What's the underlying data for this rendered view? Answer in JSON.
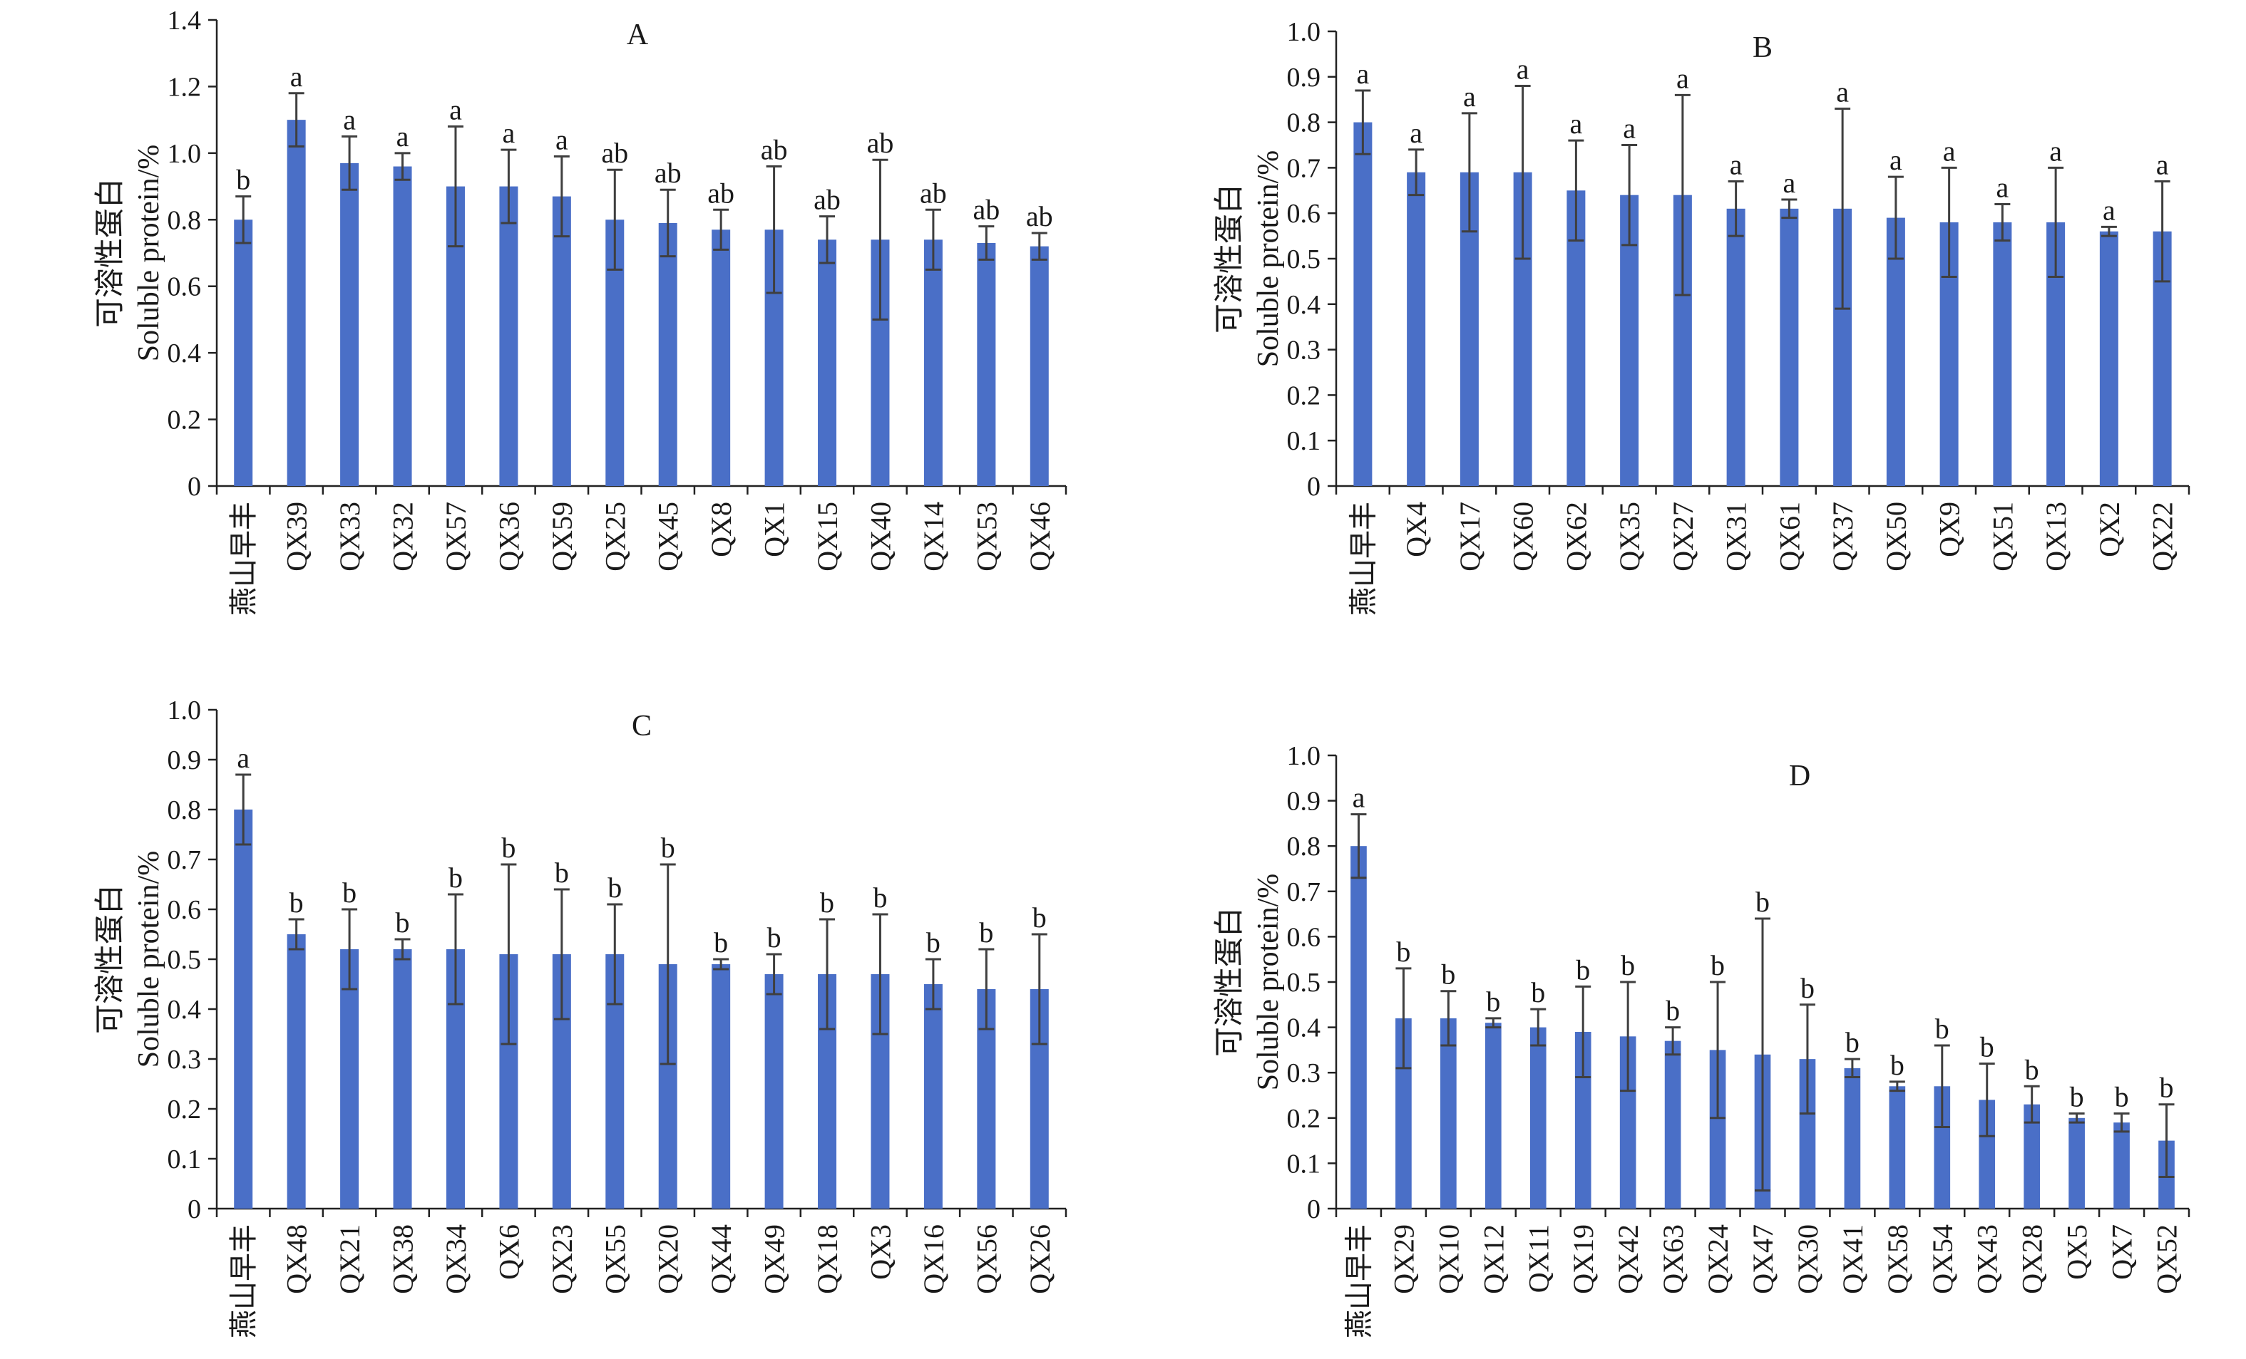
{
  "colors": {
    "bar": "#4a6fc7",
    "error_bar": "#3f3f3f",
    "axis": "#222222",
    "text": "#1a1a1a"
  },
  "chart_data": [
    {
      "panel": "A",
      "type": "bar",
      "title": "A",
      "ylabel_cn": "可溶性蛋白",
      "ylabel_en": "Soluble protein/%",
      "ylim": [
        0,
        1.4
      ],
      "yticks": [
        "0",
        "0.2",
        "0.4",
        "0.6",
        "0.8",
        "1.0",
        "1.2",
        "1.4"
      ],
      "categories": [
        "燕山早丰",
        "QX39",
        "QX33",
        "QX32",
        "QX57",
        "QX36",
        "QX59",
        "QX25",
        "QX45",
        "QX8",
        "QX1",
        "QX15",
        "QX40",
        "QX14",
        "QX53",
        "QX46"
      ],
      "values": [
        0.8,
        1.1,
        0.97,
        0.96,
        0.9,
        0.9,
        0.87,
        0.8,
        0.79,
        0.77,
        0.77,
        0.74,
        0.74,
        0.74,
        0.73,
        0.72
      ],
      "errors": [
        0.07,
        0.08,
        0.08,
        0.04,
        0.18,
        0.11,
        0.12,
        0.15,
        0.1,
        0.06,
        0.19,
        0.07,
        0.24,
        0.09,
        0.05,
        0.04
      ],
      "labels": [
        "b",
        "a",
        "a",
        "a",
        "a",
        "a",
        "a",
        "ab",
        "ab",
        "ab",
        "ab",
        "ab",
        "ab",
        "ab",
        "ab",
        "ab"
      ]
    },
    {
      "panel": "B",
      "type": "bar",
      "title": "B",
      "ylabel_cn": "可溶性蛋白",
      "ylabel_en": "Soluble protein/%",
      "ylim": [
        0,
        1.0
      ],
      "yticks": [
        "0",
        "0.1",
        "0.2",
        "0.3",
        "0.4",
        "0.5",
        "0.6",
        "0.7",
        "0.8",
        "0.9",
        "1.0"
      ],
      "categories": [
        "燕山早丰",
        "QX4",
        "QX17",
        "QX60",
        "QX62",
        "QX35",
        "QX27",
        "QX31",
        "QX61",
        "QX37",
        "QX50",
        "QX9",
        "QX51",
        "QX13",
        "QX2",
        "QX22"
      ],
      "values": [
        0.8,
        0.69,
        0.69,
        0.69,
        0.65,
        0.64,
        0.64,
        0.61,
        0.61,
        0.61,
        0.59,
        0.58,
        0.58,
        0.58,
        0.56,
        0.56
      ],
      "errors": [
        0.07,
        0.05,
        0.13,
        0.19,
        0.11,
        0.11,
        0.22,
        0.06,
        0.02,
        0.22,
        0.09,
        0.12,
        0.04,
        0.12,
        0.01,
        0.11
      ],
      "labels": [
        "a",
        "a",
        "a",
        "a",
        "a",
        "a",
        "a",
        "a",
        "a",
        "a",
        "a",
        "a",
        "a",
        "a",
        "a",
        "a"
      ]
    },
    {
      "panel": "C",
      "type": "bar",
      "title": "C",
      "ylabel_cn": "可溶性蛋白",
      "ylabel_en": "Soluble protein/%",
      "ylim": [
        0,
        1.0
      ],
      "yticks": [
        "0",
        "0.1",
        "0.2",
        "0.3",
        "0.4",
        "0.5",
        "0.6",
        "0.7",
        "0.8",
        "0.9",
        "1.0"
      ],
      "categories": [
        "燕山早丰",
        "QX48",
        "QX21",
        "QX38",
        "QX34",
        "QX6",
        "QX23",
        "QX55",
        "QX20",
        "QX44",
        "QX49",
        "QX18",
        "QX3",
        "QX16",
        "QX56",
        "QX26"
      ],
      "values": [
        0.8,
        0.55,
        0.52,
        0.52,
        0.52,
        0.51,
        0.51,
        0.51,
        0.49,
        0.49,
        0.47,
        0.47,
        0.47,
        0.45,
        0.44,
        0.44
      ],
      "errors": [
        0.07,
        0.03,
        0.08,
        0.02,
        0.11,
        0.18,
        0.13,
        0.1,
        0.2,
        0.01,
        0.04,
        0.11,
        0.12,
        0.05,
        0.08,
        0.11
      ],
      "labels": [
        "a",
        "b",
        "b",
        "b",
        "b",
        "b",
        "b",
        "b",
        "b",
        "b",
        "b",
        "b",
        "b",
        "b",
        "b",
        "b"
      ]
    },
    {
      "panel": "D",
      "type": "bar",
      "title": "D",
      "ylabel_cn": "可溶性蛋白",
      "ylabel_en": "Soluble protein/%",
      "ylim": [
        0,
        1.0
      ],
      "yticks": [
        "0",
        "0.1",
        "0.2",
        "0.3",
        "0.4",
        "0.5",
        "0.6",
        "0.7",
        "0.8",
        "0.9",
        "1.0"
      ],
      "categories": [
        "燕山早丰",
        "QX29",
        "QX10",
        "QX12",
        "QX11",
        "QX19",
        "QX42",
        "QX63",
        "QX24",
        "QX47",
        "QX30",
        "QX41",
        "QX58",
        "QX54",
        "QX43",
        "QX28",
        "QX5",
        "QX7",
        "QX52"
      ],
      "values": [
        0.8,
        0.42,
        0.42,
        0.41,
        0.4,
        0.39,
        0.38,
        0.37,
        0.35,
        0.34,
        0.33,
        0.31,
        0.27,
        0.27,
        0.24,
        0.23,
        0.2,
        0.19,
        0.15
      ],
      "errors": [
        0.07,
        0.11,
        0.06,
        0.01,
        0.04,
        0.1,
        0.12,
        0.03,
        0.15,
        0.3,
        0.12,
        0.02,
        0.01,
        0.09,
        0.08,
        0.04,
        0.01,
        0.02,
        0.08
      ],
      "labels": [
        "a",
        "b",
        "b",
        "b",
        "b",
        "b",
        "b",
        "b",
        "b",
        "b",
        "b",
        "b",
        "b",
        "b",
        "b",
        "b",
        "b",
        "b",
        "b"
      ]
    }
  ]
}
